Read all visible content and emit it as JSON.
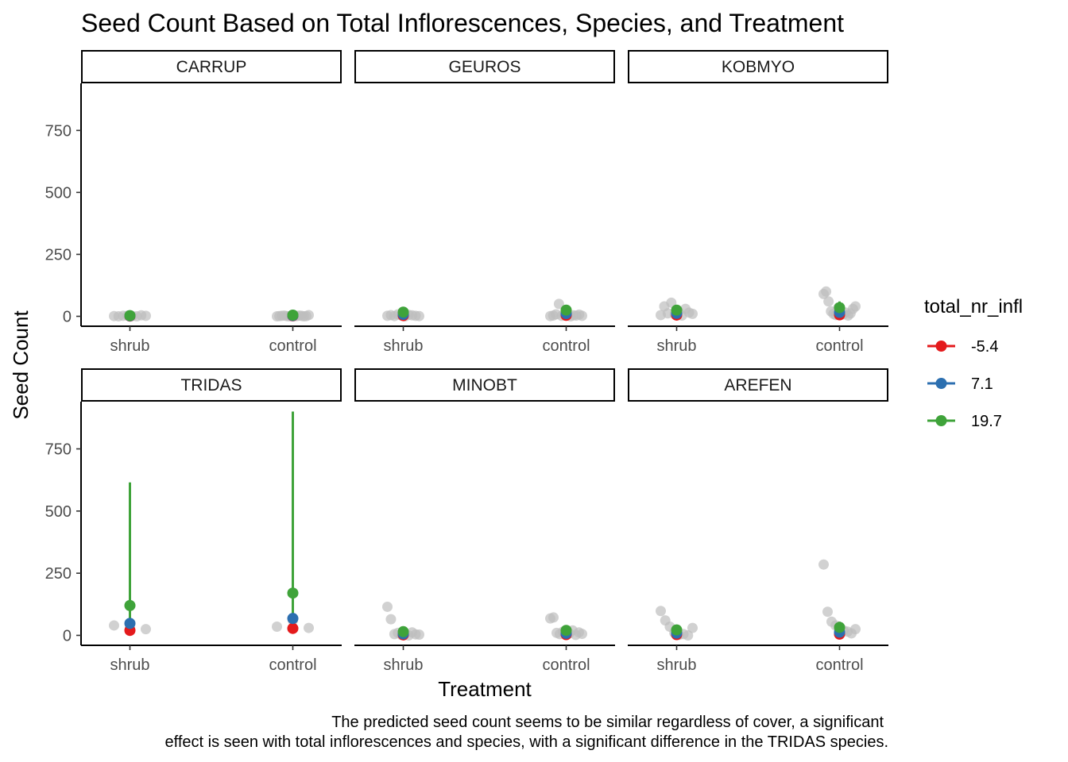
{
  "chart_data": {
    "type": "scatter",
    "title": "Seed Count Based on Total Inflorescences, Species, and Treatment",
    "xlabel": "Treatment",
    "ylabel": "Seed Count",
    "caption_lines": [
      "The predicted seed count seems to be similar regardless of cover, a significant",
      "effect is seen with total inflorescences and species, with a significant difference in the TRIDAS species."
    ],
    "categories": [
      "shrub",
      "control"
    ],
    "ylim": [
      -40,
      940
    ],
    "y_ticks": [
      0,
      250,
      500,
      750
    ],
    "grid": false,
    "legend_position": "right",
    "legend": {
      "title": "total_nr_infl",
      "entries": [
        {
          "label": "-5.4",
          "color": "#E41A1C"
        },
        {
          "label": "7.1",
          "color": "#2C6FB0"
        },
        {
          "label": "19.7",
          "color": "#3FA33A"
        }
      ]
    },
    "raw_point_color": "#bdbdbd",
    "panels": [
      {
        "name": "CARRUP",
        "predictions": [
          {
            "category": "shrub",
            "series": [
              {
                "level": "-5.4",
                "value": 1,
                "lower": 0,
                "upper": 3
              },
              {
                "level": "7.1",
                "value": 2,
                "lower": 0,
                "upper": 4
              },
              {
                "level": "19.7",
                "value": 3,
                "lower": 0,
                "upper": 6
              }
            ]
          },
          {
            "category": "control",
            "series": [
              {
                "level": "-5.4",
                "value": 2,
                "lower": 0,
                "upper": 4
              },
              {
                "level": "7.1",
                "value": 3,
                "lower": 0,
                "upper": 6
              },
              {
                "level": "19.7",
                "value": 5,
                "lower": 1,
                "upper": 9
              }
            ]
          }
        ],
        "raw": [
          {
            "category": "shrub",
            "values": [
              1,
              0,
              2,
              3,
              1,
              0,
              4,
              2
            ]
          },
          {
            "category": "control",
            "values": [
              0,
              1,
              2,
              3,
              1,
              0,
              2,
              4,
              1,
              3,
              2,
              0,
              1,
              5
            ]
          }
        ]
      },
      {
        "name": "GEUROS",
        "predictions": [
          {
            "category": "shrub",
            "series": [
              {
                "level": "-5.4",
                "value": 3,
                "lower": 0,
                "upper": 8
              },
              {
                "level": "7.1",
                "value": 8,
                "lower": 2,
                "upper": 15
              },
              {
                "level": "19.7",
                "value": 17,
                "lower": 6,
                "upper": 30
              }
            ]
          },
          {
            "category": "control",
            "series": [
              {
                "level": "-5.4",
                "value": 4,
                "lower": 0,
                "upper": 10
              },
              {
                "level": "7.1",
                "value": 11,
                "lower": 3,
                "upper": 20
              },
              {
                "level": "19.7",
                "value": 25,
                "lower": 9,
                "upper": 42
              }
            ]
          }
        ],
        "raw": [
          {
            "category": "shrub",
            "values": [
              2,
              5,
              1,
              8,
              3,
              0,
              6,
              4,
              2,
              1
            ]
          },
          {
            "category": "control",
            "values": [
              1,
              3,
              8,
              50,
              2,
              5,
              6,
              0,
              4,
              3,
              7,
              2
            ]
          }
        ]
      },
      {
        "name": "KOBMYO",
        "predictions": [
          {
            "category": "shrub",
            "series": [
              {
                "level": "-5.4",
                "value": 5,
                "lower": 1,
                "upper": 12
              },
              {
                "level": "7.1",
                "value": 12,
                "lower": 4,
                "upper": 22
              },
              {
                "level": "19.7",
                "value": 25,
                "lower": 10,
                "upper": 45
              }
            ]
          },
          {
            "category": "control",
            "series": [
              {
                "level": "-5.4",
                "value": 6,
                "lower": 1,
                "upper": 14
              },
              {
                "level": "7.1",
                "value": 16,
                "lower": 6,
                "upper": 30
              },
              {
                "level": "19.7",
                "value": 35,
                "lower": 15,
                "upper": 60
              }
            ]
          }
        ],
        "raw": [
          {
            "category": "shrub",
            "values": [
              5,
              40,
              12,
              55,
              8,
              20,
              3,
              30,
              15,
              10
            ]
          },
          {
            "category": "control",
            "values": [
              90,
              100,
              60,
              20,
              10,
              5,
              35,
              25,
              8,
              15,
              3,
              12,
              30,
              40
            ]
          }
        ]
      },
      {
        "name": "TRIDAS",
        "predictions": [
          {
            "category": "shrub",
            "series": [
              {
                "level": "-5.4",
                "value": 20,
                "lower": 5,
                "upper": 60
              },
              {
                "level": "7.1",
                "value": 48,
                "lower": 12,
                "upper": 240
              },
              {
                "level": "19.7",
                "value": 120,
                "lower": 25,
                "upper": 615
              }
            ]
          },
          {
            "category": "control",
            "series": [
              {
                "level": "-5.4",
                "value": 28,
                "lower": 7,
                "upper": 90
              },
              {
                "level": "7.1",
                "value": 68,
                "lower": 15,
                "upper": 340
              },
              {
                "level": "19.7",
                "value": 170,
                "lower": 35,
                "upper": 900
              }
            ]
          }
        ],
        "raw": [
          {
            "category": "shrub",
            "values": [
              40,
              30,
              25
            ]
          },
          {
            "category": "control",
            "values": [
              35,
              60,
              30
            ]
          }
        ]
      },
      {
        "name": "MINOBT",
        "predictions": [
          {
            "category": "shrub",
            "series": [
              {
                "level": "-5.4",
                "value": 2,
                "lower": 0,
                "upper": 6
              },
              {
                "level": "7.1",
                "value": 6,
                "lower": 1,
                "upper": 12
              },
              {
                "level": "19.7",
                "value": 15,
                "lower": 5,
                "upper": 28
              }
            ]
          },
          {
            "category": "control",
            "series": [
              {
                "level": "-5.4",
                "value": 3,
                "lower": 0,
                "upper": 8
              },
              {
                "level": "7.1",
                "value": 8,
                "lower": 2,
                "upper": 15
              },
              {
                "level": "19.7",
                "value": 20,
                "lower": 7,
                "upper": 36
              }
            ]
          }
        ],
        "raw": [
          {
            "category": "shrub",
            "values": [
              115,
              65,
              5,
              10,
              2,
              8,
              0,
              12,
              4,
              3
            ]
          },
          {
            "category": "control",
            "values": [
              68,
              72,
              10,
              5,
              15,
              3,
              8,
              20,
              2,
              12,
              6
            ]
          }
        ]
      },
      {
        "name": "AREFEN",
        "predictions": [
          {
            "category": "shrub",
            "series": [
              {
                "level": "-5.4",
                "value": 3,
                "lower": 0,
                "upper": 8
              },
              {
                "level": "7.1",
                "value": 9,
                "lower": 2,
                "upper": 18
              },
              {
                "level": "19.7",
                "value": 22,
                "lower": 8,
                "upper": 40
              }
            ]
          },
          {
            "category": "control",
            "series": [
              {
                "level": "-5.4",
                "value": 5,
                "lower": 1,
                "upper": 12
              },
              {
                "level": "7.1",
                "value": 13,
                "lower": 4,
                "upper": 24
              },
              {
                "level": "19.7",
                "value": 32,
                "lower": 12,
                "upper": 55
              }
            ]
          }
        ],
        "raw": [
          {
            "category": "shrub",
            "values": [
              98,
              60,
              35,
              10,
              2,
              5,
              0,
              30
            ]
          },
          {
            "category": "control",
            "values": [
              285,
              95,
              55,
              40,
              35,
              20,
              15,
              8,
              25
            ]
          }
        ]
      }
    ]
  }
}
